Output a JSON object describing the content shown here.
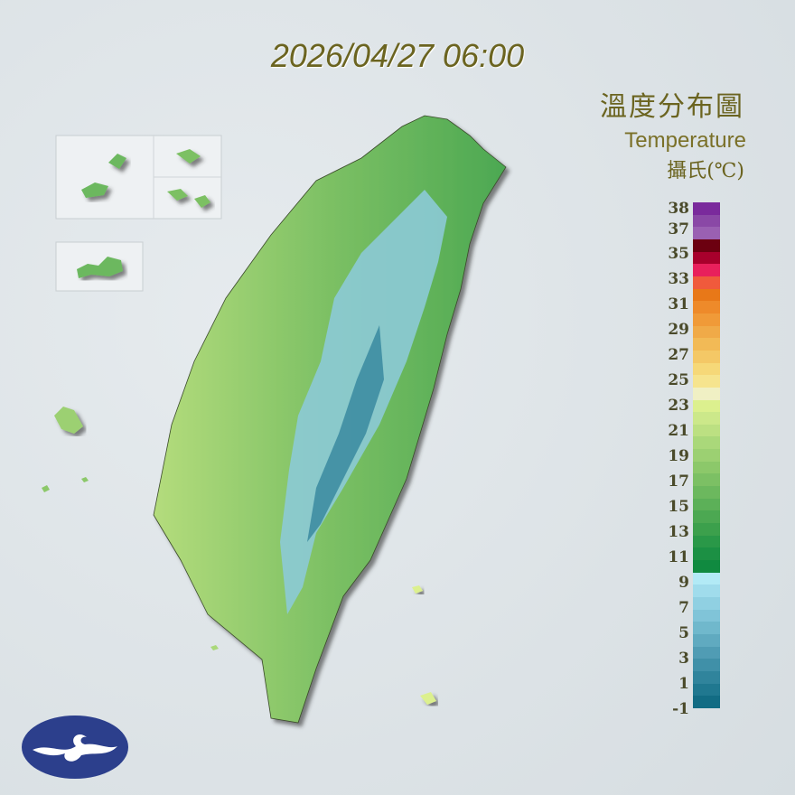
{
  "datetime": "2026/04/27 06:00",
  "legend": {
    "title_zh": "溫度分布圖",
    "title_en": "Temperature",
    "unit": "攝氏(℃)",
    "tick_labels": [
      "38",
      "37",
      "35",
      "33",
      "31",
      "29",
      "27",
      "25",
      "23",
      "21",
      "19",
      "17",
      "15",
      "13",
      "11",
      "9",
      "7",
      "5",
      "3",
      "1",
      "-1"
    ],
    "colors": [
      "#7a2a9c",
      "#8a48a6",
      "#9a60b2",
      "#6c0010",
      "#a8002c",
      "#e8205c",
      "#f05a3c",
      "#e87818",
      "#ee8a2a",
      "#f09a38",
      "#f0aa48",
      "#f2ba56",
      "#f4c866",
      "#f6d878",
      "#f6e48e",
      "#f0f0c4",
      "#dcf08e",
      "#cce88a",
      "#bce082",
      "#aad87a",
      "#9cd072",
      "#8cc86a",
      "#7cc064",
      "#6cb85e",
      "#5cb058",
      "#4ca852",
      "#3ca04c",
      "#2a9848",
      "#1c9044",
      "#108a40",
      "#b2eaf6",
      "#a0dcec",
      "#90d0e2",
      "#80c4d8",
      "#70b8cc",
      "#60aac0",
      "#509cb4",
      "#4090a8",
      "#30849c",
      "#207890",
      "#126c84"
    ]
  },
  "logo": "CWA"
}
